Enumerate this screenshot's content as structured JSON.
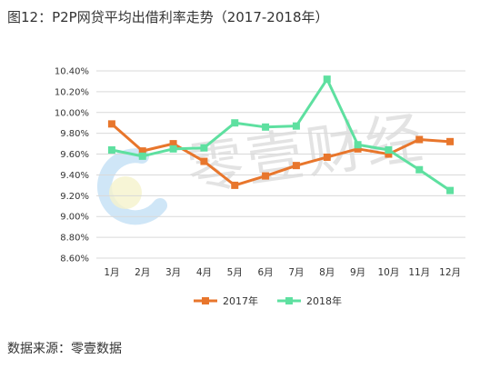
{
  "figure_title": "图12：P2P网贷平均出借利率走势（2017-2018年）",
  "source_note": "数据来源：零壹数据",
  "watermark": "零壹财经",
  "chart_data": {
    "type": "line",
    "title": "",
    "xlabel": "",
    "ylabel": "",
    "categories": [
      "1月",
      "2月",
      "3月",
      "4月",
      "5月",
      "6月",
      "7月",
      "8月",
      "9月",
      "10月",
      "11月",
      "12月"
    ],
    "series": [
      {
        "name": "2017年",
        "color": "#E8762C",
        "values": [
          9.89,
          9.63,
          9.7,
          9.53,
          9.3,
          9.39,
          9.49,
          9.57,
          9.65,
          9.6,
          9.74,
          9.72
        ]
      },
      {
        "name": "2018年",
        "color": "#5EE0A0",
        "values": [
          9.64,
          9.58,
          9.65,
          9.66,
          9.9,
          9.86,
          9.87,
          10.32,
          9.69,
          9.64,
          9.45,
          9.25
        ]
      }
    ],
    "ylim": [
      8.6,
      10.4
    ],
    "yticks": [
      8.6,
      8.8,
      9.0,
      9.2,
      9.4,
      9.6,
      9.8,
      10.0,
      10.2,
      10.4
    ],
    "y_tick_format": "percent_2dp",
    "grid": true,
    "legend": "bottom"
  }
}
